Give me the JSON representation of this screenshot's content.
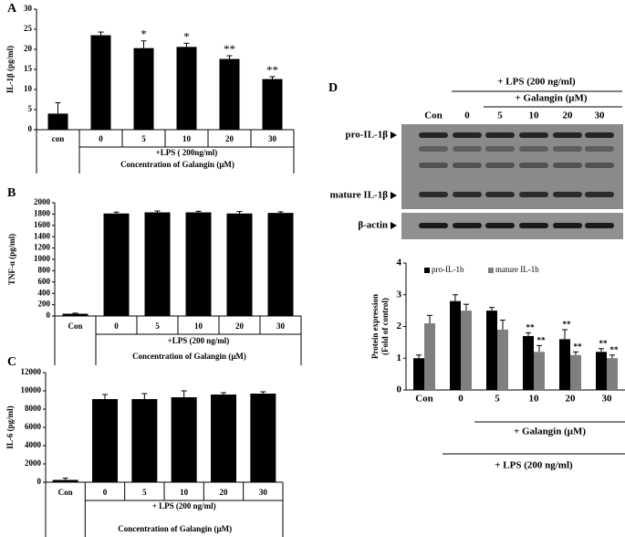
{
  "chart_data": [
    {
      "type": "bar",
      "label": "A",
      "ylabel": [
        "IL-1β (pg/ml)"
      ],
      "categories": [
        "con",
        "0",
        "5",
        "10",
        "20",
        "30"
      ],
      "values": [
        4,
        23.5,
        20.3,
        20.6,
        17.6,
        12.6
      ],
      "errors": [
        2.7,
        0.8,
        1.8,
        0.9,
        0.8,
        0.6
      ],
      "annotations": [
        null,
        null,
        "*",
        "*",
        "**",
        "**"
      ],
      "color": "#000000",
      "ylim": [
        0,
        30
      ],
      "yticks": [
        0,
        5,
        10,
        15,
        20,
        25,
        30
      ],
      "group_label": "+LPS ( 200ng/ml)",
      "xlabel": "Concentration of Galangin (μM)"
    },
    {
      "type": "bar",
      "label": "B",
      "ylabel": [
        "TNF-α (pg/ml)"
      ],
      "categories": [
        "Con",
        "0",
        "5",
        "10",
        "20",
        "30"
      ],
      "values": [
        40,
        1810,
        1830,
        1830,
        1810,
        1820
      ],
      "errors": [
        10,
        25,
        25,
        20,
        35,
        20
      ],
      "color": "#000000",
      "ylim": [
        0,
        2000
      ],
      "yticks": [
        0,
        200,
        400,
        600,
        800,
        1000,
        1200,
        1400,
        1600,
        1800,
        2000
      ],
      "group_label": "+LPS (200 ng/ml)",
      "xlabel": "Concentration of Galangin (μM)"
    },
    {
      "type": "bar",
      "label": "C",
      "ylabel": [
        "IL-6 (pg/ml)"
      ],
      "categories": [
        "Con",
        "0",
        "5",
        "10",
        "20",
        "30"
      ],
      "values": [
        250,
        9100,
        9100,
        9300,
        9600,
        9700
      ],
      "errors": [
        200,
        500,
        600,
        700,
        200,
        200
      ],
      "color": "#000000",
      "ylim": [
        0,
        12000
      ],
      "yticks": [
        0,
        2000,
        4000,
        6000,
        8000,
        10000,
        12000
      ],
      "group_label": "+ LPS (200 ng/ml)",
      "xlabel": "Concentration of Galangin (μM)"
    },
    {
      "type": "grouped_bar",
      "label": "D",
      "ylabel": [
        "Protein expression",
        "(Fold of control)"
      ],
      "categories": [
        "Con",
        "0",
        "5",
        "10",
        "20",
        "30"
      ],
      "series": [
        {
          "name": "pro-IL-1b",
          "color": "#000000",
          "values": [
            1.0,
            2.8,
            2.5,
            1.7,
            1.6,
            1.2
          ],
          "errors": [
            0.1,
            0.2,
            0.1,
            0.1,
            0.3,
            0.1
          ],
          "annotations": [
            null,
            null,
            null,
            "**",
            "**",
            "**"
          ]
        },
        {
          "name": "mature IL-1b",
          "color": "#7f7f7f",
          "values": [
            2.1,
            2.5,
            1.9,
            1.2,
            1.1,
            1.0
          ],
          "errors": [
            0.25,
            0.2,
            0.3,
            0.2,
            0.1,
            0.1
          ],
          "annotations": [
            null,
            null,
            null,
            "**",
            "**",
            "**"
          ]
        }
      ],
      "ylim": [
        0,
        4
      ],
      "yticks": [
        0,
        1,
        2,
        3,
        4
      ],
      "legend": "top-left",
      "group_labels": [
        "+ Galangin (μM)",
        "+ LPS (200 ng/ml)"
      ]
    }
  ],
  "blot": {
    "treatments": [
      "+ LPS (200 ng/ml)",
      "+ Galangin (μM)"
    ],
    "lanes": [
      "Con",
      "0",
      "5",
      "10",
      "20",
      "30"
    ],
    "bands": [
      "pro-IL-1β",
      "mature IL-1β",
      "β-actin"
    ]
  }
}
